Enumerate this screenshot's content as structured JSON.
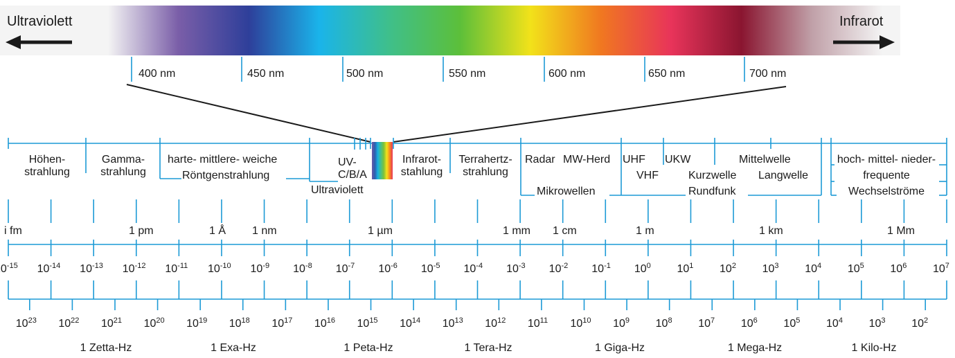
{
  "spectrum_bar": {
    "left_label": "Ultraviolett",
    "right_label": "Infrarot",
    "ticks": [
      "400 nm",
      "450 nm",
      "500 nm",
      "550 nm",
      "600 nm",
      "650 nm",
      "700 nm"
    ],
    "gradient_colors": [
      "#f4f4f4",
      "#7a5ea8",
      "#2e3f9a",
      "#1ab4ea",
      "#3fbf8a",
      "#5cbf3a",
      "#f2e21a",
      "#f07820",
      "#e8345a",
      "#8a1530",
      "#c0a0a8",
      "#f4f4f4"
    ]
  },
  "regions": {
    "hoehen": [
      "Höhen-",
      "strahlung"
    ],
    "gamma": [
      "Gamma-",
      "strahlung"
    ],
    "roentgen_top": "harte- mittlere- weiche",
    "roentgen_bottom": "Röntgenstrahlung",
    "uv_top": "UV-",
    "uv_mid": "C/B/A",
    "uv_bottom": "Ultraviolett",
    "infrarot": [
      "Infrarot-",
      "stahlung"
    ],
    "terahertz": [
      "Terrahertz-",
      "strahlung"
    ],
    "radar": "Radar",
    "mw_herd": "MW-Herd",
    "mikrowellen": "Mikrowellen",
    "uhf": "UHF",
    "vhf": "VHF",
    "ukw": "UKW",
    "kurzwelle": "Kurzwelle",
    "mittelwelle": "Mittelwelle",
    "langwelle": "Langwelle",
    "rundfunk": "Rundfunk",
    "wechsel": [
      "hoch- mittel- nieder-",
      "frequente",
      "Wechselströme"
    ]
  },
  "length_names": [
    {
      "label": "i fm"
    },
    {
      "label": "1 pm"
    },
    {
      "label": "1 Å"
    },
    {
      "label": "1 nm"
    },
    {
      "label": "1 µm"
    },
    {
      "label": "1 mm"
    },
    {
      "label": "1 cm"
    },
    {
      "label": "1 m"
    },
    {
      "label": "1 km"
    },
    {
      "label": "1 Mm"
    }
  ],
  "wavelength_base": "10",
  "wavelength_exponents": [
    "-15",
    "-14",
    "-13",
    "-12",
    "-11",
    "-10",
    "-9",
    "-8",
    "-7",
    "-6",
    "-5",
    "-4",
    "-3",
    "-2",
    "-1",
    "0",
    "1",
    "2",
    "3",
    "4",
    "5",
    "6",
    "7"
  ],
  "frequency_exponents": [
    "23",
    "22",
    "21",
    "20",
    "19",
    "18",
    "17",
    "16",
    "15",
    "14",
    "13",
    "12",
    "11",
    "10",
    "9",
    "8",
    "7",
    "6",
    "5",
    "4",
    "3",
    "2"
  ],
  "frequency_names": [
    "1 Zetta-Hz",
    "1 Exa-Hz",
    "1 Peta-Hz",
    "1 Tera-Hz",
    "1 Giga-Hz",
    "1 Mega-Hz",
    "1 Kilo-Hz"
  ],
  "colors": {
    "axis": "#1c9ad6",
    "text": "#1a1a1a",
    "arrow": "#1a1a1a"
  }
}
